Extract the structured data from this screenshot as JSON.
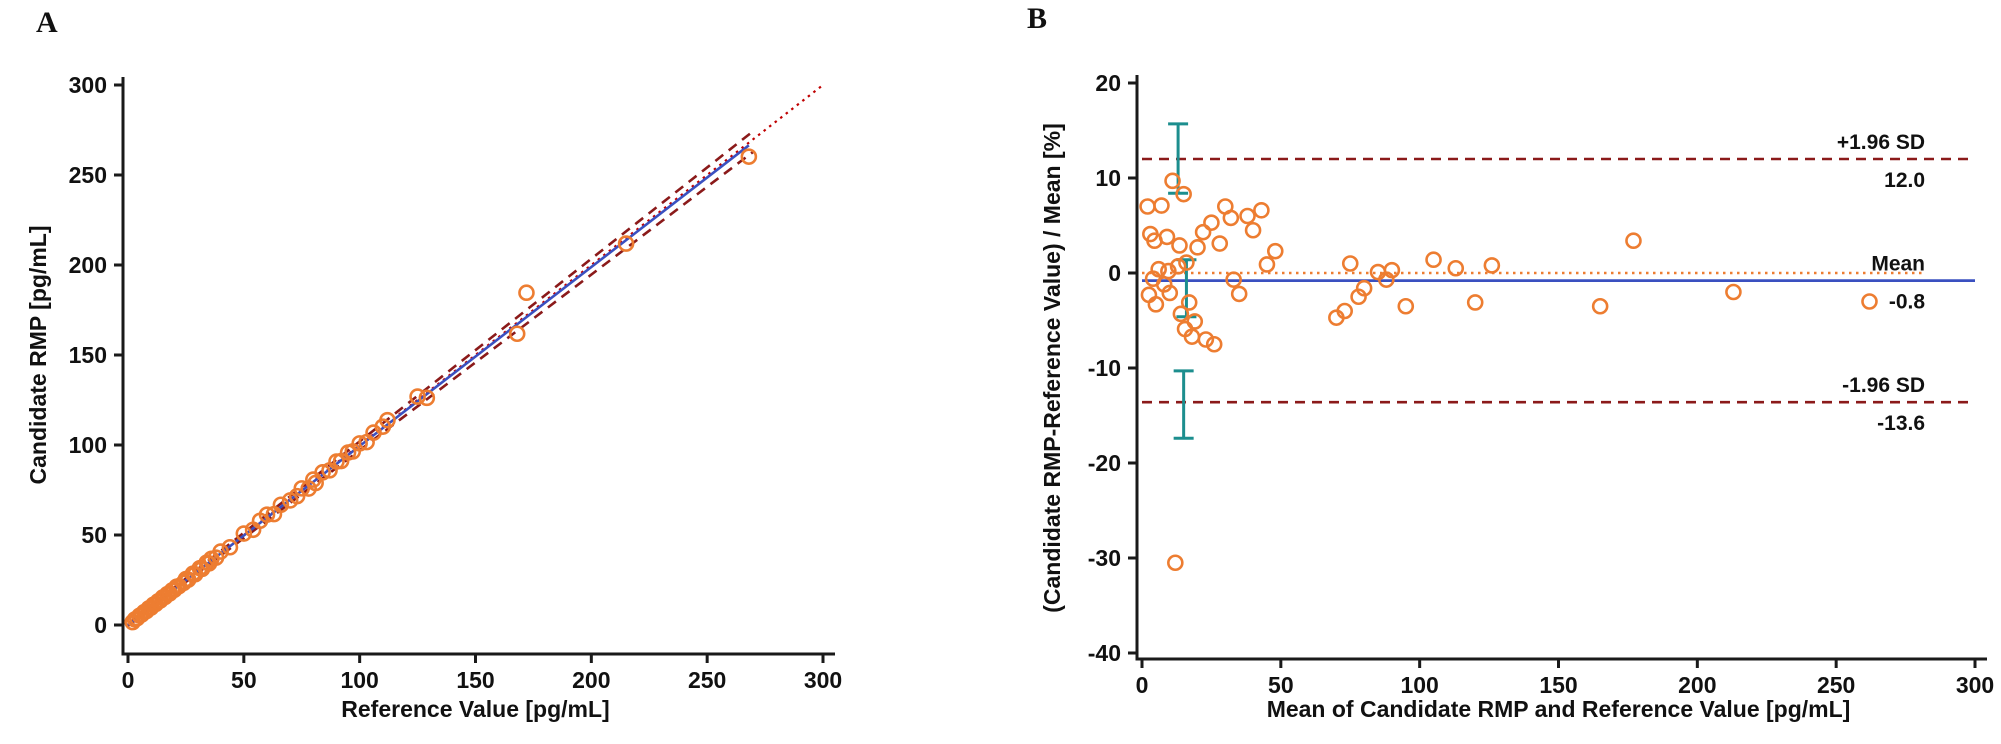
{
  "figure": {
    "panel_a_label": "A",
    "panel_b_label": "B"
  },
  "colors": {
    "marker_orange": "#ED7D31",
    "regression_blue": "#3A50C0",
    "ci_dashed_red": "#8B1A1A",
    "identity_dotted_red": "#C00000",
    "zero_dotted_orange": "#ED7D31",
    "errorbar_teal": "#1C8E8E",
    "axis_black": "#1a1a1a"
  },
  "chart_data": [
    {
      "type": "scatter",
      "panel": "A",
      "title": "",
      "xlabel": "Reference Value [pg/mL]",
      "ylabel": "Candidate RMP [pg/mL]",
      "xlim": [
        0,
        300
      ],
      "ylim": [
        0,
        300
      ],
      "xticks": [
        0,
        50,
        100,
        150,
        200,
        250,
        300
      ],
      "yticks": [
        0,
        50,
        100,
        150,
        200,
        250,
        300
      ],
      "points": [
        [
          2,
          1.6
        ],
        [
          3,
          3.1
        ],
        [
          4,
          3.8
        ],
        [
          5,
          5.2
        ],
        [
          6,
          5.9
        ],
        [
          7,
          7.2
        ],
        [
          8,
          7.8
        ],
        [
          9,
          9.3
        ],
        [
          10,
          9.7
        ],
        [
          11,
          11.3
        ],
        [
          12,
          11.7
        ],
        [
          13,
          13.2
        ],
        [
          14,
          13.7
        ],
        [
          15,
          15.3
        ],
        [
          16,
          15.6
        ],
        [
          17,
          17.2
        ],
        [
          18,
          17.6
        ],
        [
          19,
          19.2
        ],
        [
          20,
          19.6
        ],
        [
          21,
          21.3
        ],
        [
          22,
          21.6
        ],
        [
          24,
          23.4
        ],
        [
          25,
          25.5
        ],
        [
          26,
          25.2
        ],
        [
          28,
          28.5
        ],
        [
          29,
          28.2
        ],
        [
          31,
          31.6
        ],
        [
          32,
          31.2
        ],
        [
          34,
          34.7
        ],
        [
          35,
          34.2
        ],
        [
          36,
          36.8
        ],
        [
          38,
          37.4
        ],
        [
          40,
          40.8
        ],
        [
          44,
          43.2
        ],
        [
          50,
          50.8
        ],
        [
          54,
          52.9
        ],
        [
          57,
          57.9
        ],
        [
          60,
          61.3
        ],
        [
          63,
          61.6
        ],
        [
          66,
          66.8
        ],
        [
          70,
          69.2
        ],
        [
          73,
          71.6
        ],
        [
          75,
          75.9
        ],
        [
          78,
          75.8
        ],
        [
          80,
          80.8
        ],
        [
          81,
          78.9
        ],
        [
          84,
          84.8
        ],
        [
          87,
          85.9
        ],
        [
          90,
          90.8
        ],
        [
          92,
          91.1
        ],
        [
          95,
          95.8
        ],
        [
          97,
          96.4
        ],
        [
          100,
          100.9
        ],
        [
          103,
          101.6
        ],
        [
          106,
          106.9
        ],
        [
          110,
          110.2
        ],
        [
          112,
          113.8
        ],
        [
          125,
          126.9
        ],
        [
          129,
          126.2
        ],
        [
          168,
          161.8
        ],
        [
          172,
          184.6
        ],
        [
          215,
          211.9
        ],
        [
          268,
          260.2
        ]
      ],
      "lines": [
        {
          "name": "identity-line",
          "style": "dotted",
          "color_key": "identity_dotted_red",
          "x1": 0,
          "y1": 0,
          "x2": 300,
          "y2": 300,
          "width": 2.2
        },
        {
          "name": "ci-upper-line",
          "style": "dashed",
          "color_key": "ci_dashed_red",
          "x1": 0,
          "y1": 0.5,
          "x2": 270,
          "y2": 274.5,
          "width": 2.6
        },
        {
          "name": "ci-lower-line",
          "style": "dashed",
          "color_key": "ci_dashed_red",
          "x1": 0,
          "y1": -0.5,
          "x2": 270,
          "y2": 263,
          "width": 2.6
        },
        {
          "name": "regression-line",
          "style": "solid",
          "color_key": "regression_blue",
          "x1": 0,
          "y1": 0,
          "x2": 268,
          "y2": 266.5,
          "width": 2.6
        }
      ]
    },
    {
      "type": "scatter",
      "panel": "B",
      "title": "",
      "xlabel": "Mean of Candidate RMP and Reference Value [pg/mL]",
      "ylabel": "(Candidate RMP-Reference Value) / Mean [%]",
      "xlim": [
        0,
        300
      ],
      "ylim": [
        -40,
        20
      ],
      "xticks": [
        0,
        50,
        100,
        150,
        200,
        250,
        300
      ],
      "yticks": [
        20,
        10,
        0,
        -10,
        -20,
        -30,
        -40
      ],
      "points": [
        [
          2,
          7.0
        ],
        [
          2.5,
          -2.3
        ],
        [
          3,
          4.1
        ],
        [
          4,
          -0.6
        ],
        [
          4.5,
          3.4
        ],
        [
          5,
          -3.3
        ],
        [
          6,
          0.4
        ],
        [
          7,
          7.1
        ],
        [
          8,
          -1.2
        ],
        [
          9,
          3.8
        ],
        [
          9.5,
          0.2
        ],
        [
          10,
          -2.1
        ],
        [
          11,
          9.7
        ],
        [
          12,
          -30.5
        ],
        [
          13,
          0.7
        ],
        [
          13.5,
          2.9
        ],
        [
          14,
          -4.3
        ],
        [
          15,
          8.3
        ],
        [
          15.5,
          -5.9
        ],
        [
          16,
          1.1
        ],
        [
          17,
          -3.1
        ],
        [
          18,
          -6.7
        ],
        [
          19,
          -5.1
        ],
        [
          20,
          2.7
        ],
        [
          22,
          4.3
        ],
        [
          23,
          -7.0
        ],
        [
          25,
          5.3
        ],
        [
          26,
          -7.5
        ],
        [
          28,
          3.1
        ],
        [
          30,
          7.0
        ],
        [
          32,
          5.8
        ],
        [
          33,
          -0.7
        ],
        [
          35,
          -2.2
        ],
        [
          38,
          6.0
        ],
        [
          40,
          4.5
        ],
        [
          43,
          6.6
        ],
        [
          45,
          0.9
        ],
        [
          48,
          2.3
        ],
        [
          70,
          -4.7
        ],
        [
          73,
          -4.0
        ],
        [
          75,
          1.0
        ],
        [
          78,
          -2.5
        ],
        [
          80,
          -1.6
        ],
        [
          85,
          0.1
        ],
        [
          88,
          -0.7
        ],
        [
          90,
          0.3
        ],
        [
          95,
          -3.5
        ],
        [
          105,
          1.4
        ],
        [
          113,
          0.5
        ],
        [
          120,
          -3.1
        ],
        [
          126,
          0.8
        ],
        [
          165,
          -3.5
        ],
        [
          177,
          3.4
        ],
        [
          213,
          -2.0
        ],
        [
          262,
          -3.0
        ]
      ],
      "hlines": [
        {
          "name": "upper-loa-line",
          "y": 12.0,
          "style": "dashed",
          "color_key": "ci_dashed_red",
          "x1": 0,
          "x2": 300,
          "label": "+1.96 SD",
          "value_label": "12.0"
        },
        {
          "name": "zero-line",
          "y": 0,
          "style": "dotted",
          "color_key": "zero_dotted_orange",
          "x1": 0,
          "x2": 282
        },
        {
          "name": "mean-line",
          "y": -0.8,
          "style": "solid",
          "color_key": "regression_blue",
          "x1": 0,
          "x2": 300,
          "label": "Mean",
          "value_label": "-0.8"
        },
        {
          "name": "lower-loa-line",
          "y": -13.6,
          "style": "dashed",
          "color_key": "ci_dashed_red",
          "x1": 0,
          "x2": 300,
          "label": "-1.96 SD",
          "value_label": "-13.6"
        }
      ],
      "error_bars": [
        {
          "x": 13,
          "y_low": 8.4,
          "y_high": 15.7
        },
        {
          "x": 16,
          "y_low": -4.6,
          "y_high": 1.4
        },
        {
          "x": 15,
          "y_low": -17.4,
          "y_high": -10.3
        }
      ],
      "stats": {
        "upper_loa": 12.0,
        "mean_bias": -0.8,
        "lower_loa": -13.6
      }
    }
  ]
}
